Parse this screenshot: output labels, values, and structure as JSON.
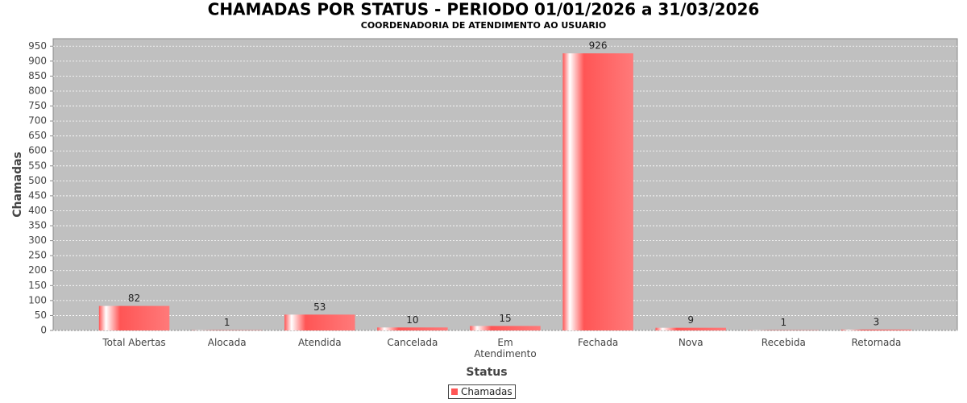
{
  "chart_data": {
    "type": "bar",
    "title": "CHAMADAS POR STATUS - PERIODO 01/01/2026 a 31/03/2026",
    "subtitle": "COORDENADORIA DE ATENDIMENTO AO USUARIO",
    "x_label": "Status",
    "y_label": "Chamadas",
    "categories": [
      "Total Abertas",
      "Alocada",
      "Atendida",
      "Cancelada",
      "Em\nAtendimento",
      "Fechada",
      "Nova",
      "Recebida",
      "Retornada"
    ],
    "series": [
      {
        "name": "Chamadas",
        "color": "#ff5555",
        "values": [
          82,
          1,
          53,
          10,
          15,
          926,
          9,
          1,
          3
        ]
      }
    ],
    "ylim": [
      0,
      975
    ],
    "yticks": [
      0,
      50,
      100,
      150,
      200,
      250,
      300,
      350,
      400,
      450,
      500,
      550,
      600,
      650,
      700,
      750,
      800,
      850,
      900,
      950
    ],
    "grid": true,
    "legend": "bottom"
  }
}
